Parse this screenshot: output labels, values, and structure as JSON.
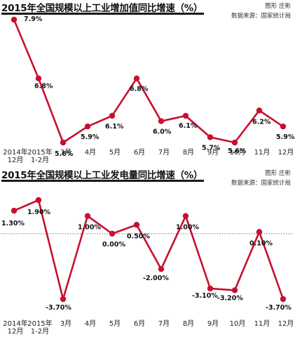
{
  "colors": {
    "line": "#c8102e",
    "rule": "#1a1a1a",
    "refline": "#777777"
  },
  "chart_data": [
    {
      "type": "line",
      "title": "2015年全国规模以上工业增加值同比增速（%）",
      "credit": "图形 庄彬",
      "source": "数据来源：国家统计局",
      "categories": [
        "2014年\n12月",
        "2015年\n1-2月",
        "3月",
        "4月",
        "5月",
        "6月",
        "7月",
        "8月",
        "9月",
        "10月",
        "11月",
        "12月"
      ],
      "values": [
        7.9,
        6.8,
        5.6,
        5.9,
        6.1,
        6.8,
        6.0,
        6.1,
        5.7,
        5.6,
        6.2,
        5.9
      ],
      "data_labels": [
        "7.9%",
        "6.8%",
        "5.6%",
        "5.9%",
        "6.1%",
        "6.8%",
        "6.0%",
        "6.1%",
        "5.7%",
        "5.6%",
        "6.2%",
        "5.9%"
      ],
      "ylim": [
        5.6,
        7.9
      ],
      "grid": false,
      "xlabel": "",
      "ylabel": ""
    },
    {
      "type": "line",
      "title": "2015年全国规模以上工业发电量同比增速（%）",
      "credit": "图形 庄彬",
      "source": "数据来源：国家统计局",
      "categories": [
        "2014年\n12月",
        "2015年\n1-2月",
        "3月",
        "4月",
        "5月",
        "6月",
        "7月",
        "8月",
        "9月",
        "10月",
        "11月",
        "12月"
      ],
      "values": [
        1.3,
        1.9,
        -3.7,
        1.0,
        0.0,
        0.5,
        -2.0,
        1.0,
        -3.1,
        -3.2,
        0.1,
        -3.7
      ],
      "data_labels": [
        "1.30%",
        "1.90%",
        "-3.70%",
        "1.00%",
        "0.00%",
        "0.50%",
        "-2.00%",
        "1.00%",
        "-3.10%",
        "-3.20%",
        "0.10%",
        "-3.70%"
      ],
      "ylim": [
        -3.7,
        1.9
      ],
      "zero_line": "dotted",
      "grid": false,
      "xlabel": "",
      "ylabel": ""
    }
  ]
}
